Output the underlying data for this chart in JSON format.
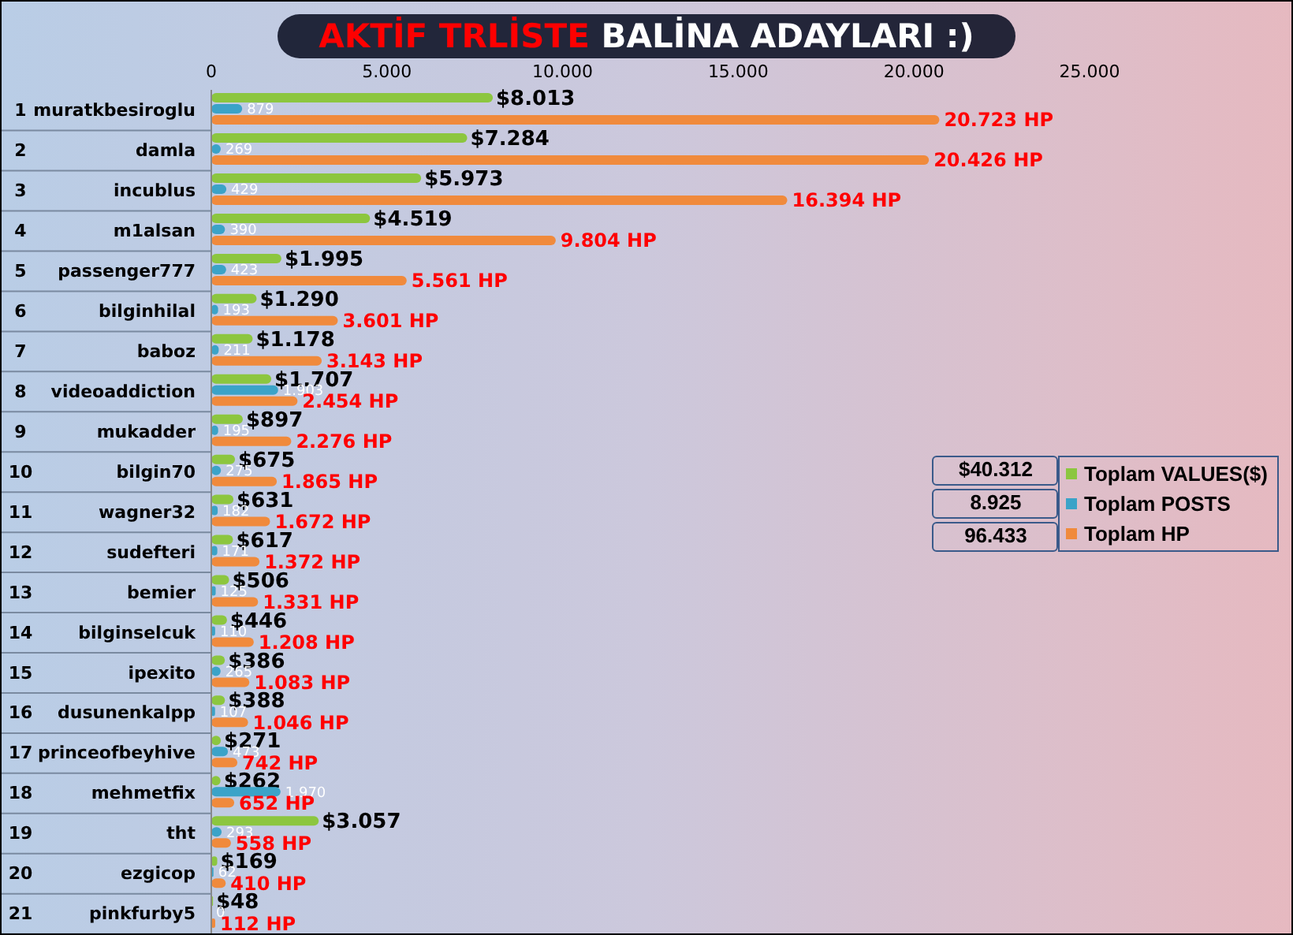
{
  "chart_data": {
    "type": "bar",
    "orientation": "horizontal",
    "title": "AKTİF TRLİSTE",
    "subtitle": "BALİNA ADAYLARI :)",
    "categories": [
      "muratkbesiroglu",
      "damla",
      "incublus",
      "m1alsan",
      "passenger777",
      "bilginhilal",
      "baboz",
      "videoaddiction",
      "mukadder",
      "bilgin70",
      "wagner32",
      "sudefteri",
      "bemier",
      "bilginselcuk",
      "ipexito",
      "dusunenkalpp",
      "princeofbeyhive",
      "mehmetfix",
      "tht",
      "ezgicop",
      "pinkfurby5"
    ],
    "series": [
      {
        "name": "Toplam VALUES($)",
        "color": "#8cc63f",
        "values": [
          8013,
          7284,
          5973,
          4519,
          1995,
          1290,
          1178,
          1707,
          897,
          675,
          631,
          617,
          506,
          446,
          386,
          388,
          271,
          262,
          3057,
          169,
          48
        ],
        "value_labels": [
          "$8.013",
          "$7.284",
          "$5.973",
          "$4.519",
          "$1.995",
          "$1.290",
          "$1.178",
          "$1.707",
          "$897",
          "$675",
          "$631",
          "$617",
          "$506",
          "$446",
          "$386",
          "$388",
          "$271",
          "$262",
          "$3.057",
          "$169",
          "$48"
        ]
      },
      {
        "name": "Toplam POSTS",
        "color": "#3ba3c8",
        "values": [
          879,
          269,
          429,
          390,
          423,
          193,
          211,
          1903,
          195,
          275,
          182,
          171,
          125,
          110,
          265,
          107,
          473,
          1970,
          293,
          62,
          0
        ],
        "value_labels": [
          "879",
          "269",
          "429",
          "390",
          "423",
          "193",
          "211",
          "1.903",
          "195",
          "275",
          "182",
          "171",
          "125",
          "110",
          "265",
          "107",
          "473",
          "1.970",
          "293",
          "62",
          "0"
        ]
      },
      {
        "name": "Toplam HP",
        "color": "#f08a3c",
        "values": [
          20723,
          20426,
          16394,
          9804,
          5561,
          3601,
          3143,
          2454,
          2276,
          1865,
          1672,
          1372,
          1331,
          1208,
          1083,
          1046,
          742,
          652,
          558,
          410,
          112
        ],
        "value_labels": [
          "20.723 HP",
          "20.426 HP",
          "16.394 HP",
          "9.804 HP",
          "5.561 HP",
          "3.601 HP",
          "3.143 HP",
          "2.454 HP",
          "2.276 HP",
          "1.865 HP",
          "1.672 HP",
          "1.372 HP",
          "1.331 HP",
          "1.208 HP",
          "1.083 HP",
          "1.046 HP",
          "742 HP",
          "652 HP",
          "558 HP",
          "410 HP",
          "112 HP"
        ]
      }
    ],
    "xlim": [
      0,
      25000
    ],
    "xticks": [
      0,
      {
        "value": 5000,
        "label": "5.000"
      },
      {
        "value": 10000,
        "label": "10.000"
      },
      {
        "value": 15000,
        "label": "15.000"
      },
      {
        "value": 20000,
        "label": "20.000"
      },
      {
        "value": 25000,
        "label": "25.000"
      }
    ],
    "legend": "right",
    "annotations": [
      "1",
      "2",
      "3",
      "4",
      "5",
      "6",
      "7",
      "8",
      "9",
      "10",
      "11",
      "12",
      "13",
      "14",
      "15",
      "16",
      "17",
      "18",
      "19",
      "20",
      "21",
      "$40.312",
      "8.925",
      "96.433"
    ]
  }
}
